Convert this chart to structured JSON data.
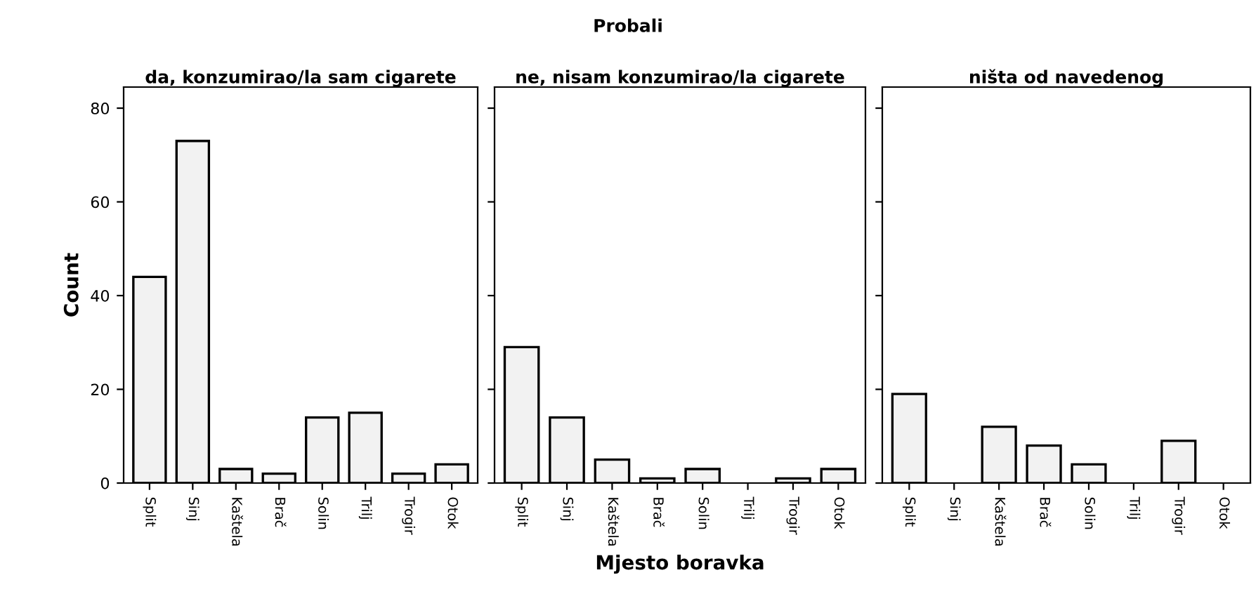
{
  "chart_data": [
    {
      "type": "bar",
      "title": "da, konzumirao/la sam cigarete",
      "ylabel": "Count",
      "annotations": [
        "Probali"
      ],
      "categories": [
        "Split",
        "Sinj",
        "Kaštela",
        "Brač",
        "Solin",
        "Trilj",
        "Trogir",
        "Otok"
      ],
      "values": [
        44,
        73,
        3,
        2,
        14,
        15,
        2,
        4
      ],
      "color": "#f2f2f2",
      "ylim": [
        0,
        84.5
      ],
      "yticks": [
        0,
        20,
        40,
        60,
        80
      ],
      "grid": false
    },
    {
      "type": "bar",
      "title": "ne, nisam konzumirao/la cigarete",
      "xlabel": "Mjesto boravka",
      "categories": [
        "Split",
        "Sinj",
        "Kaštela",
        "Brač",
        "Solin",
        "Trilj",
        "Trogir",
        "Otok"
      ],
      "values": [
        29,
        14,
        5,
        1,
        3,
        0,
        1,
        3
      ],
      "color": "#f2f2f2",
      "ylim": [
        0,
        84.5
      ],
      "yticks": [
        0,
        20,
        40,
        60,
        80
      ],
      "tick_labels": "x",
      "grid": false
    },
    {
      "type": "bar",
      "title": "ništa od navedenog",
      "categories": [
        "Split",
        "Sinj",
        "Kaštela",
        "Brač",
        "Solin",
        "Trilj",
        "Trogir",
        "Otok"
      ],
      "values": [
        19,
        0,
        12,
        8,
        4,
        0,
        9,
        0
      ],
      "color": "#f2f2f2",
      "ylim": [
        0,
        84.5
      ],
      "yticks": [
        0,
        20,
        40,
        60,
        80
      ],
      "tick_labels": "x",
      "grid": false
    }
  ]
}
